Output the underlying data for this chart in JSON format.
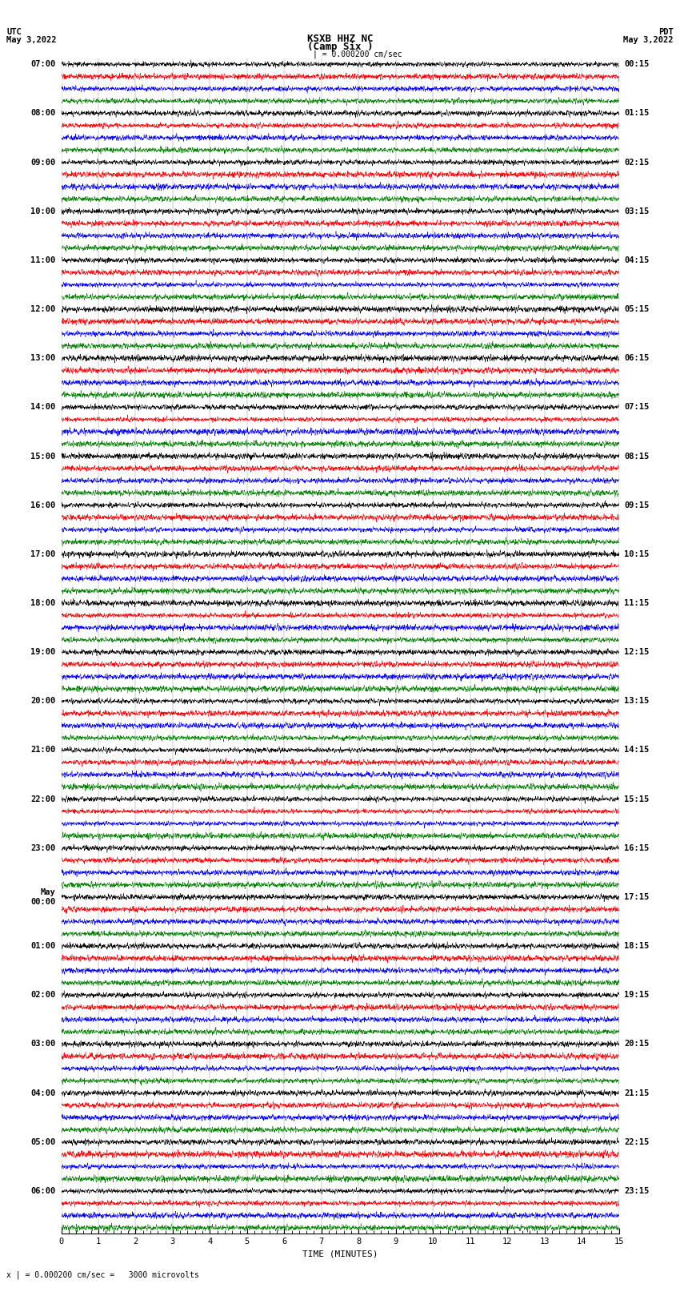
{
  "title_line1": "KSXB HHZ NC",
  "title_line2": "(Camp Six )",
  "scale_label": "| = 0.000200 cm/sec",
  "left_header_line1": "UTC",
  "left_header_line2": "May 3,2022",
  "right_header_line1": "PDT",
  "right_header_line2": "May 3,2022",
  "xlabel": "TIME (MINUTES)",
  "bottom_note": "x | = 0.000200 cm/sec =   3000 microvolts",
  "utc_labels": [
    "07:00",
    "08:00",
    "09:00",
    "10:00",
    "11:00",
    "12:00",
    "13:00",
    "14:00",
    "15:00",
    "16:00",
    "17:00",
    "18:00",
    "19:00",
    "20:00",
    "21:00",
    "22:00",
    "23:00",
    "May\n00:00",
    "01:00",
    "02:00",
    "03:00",
    "04:00",
    "05:00",
    "06:00"
  ],
  "pdt_labels": [
    "00:15",
    "01:15",
    "02:15",
    "03:15",
    "04:15",
    "05:15",
    "06:15",
    "07:15",
    "08:15",
    "09:15",
    "10:15",
    "11:15",
    "12:15",
    "13:15",
    "14:15",
    "15:15",
    "16:15",
    "17:15",
    "18:15",
    "19:15",
    "20:15",
    "21:15",
    "22:15",
    "23:15"
  ],
  "trace_colors": [
    "black",
    "red",
    "blue",
    "green"
  ],
  "n_hours": 24,
  "n_minutes": 15,
  "samples_per_minute": 200,
  "amplitude_scale": 0.38,
  "background_color": "white",
  "fig_width": 8.5,
  "fig_height": 16.13,
  "grid_color": "#888888",
  "grid_linewidth": 0.3,
  "trace_linewidth": 0.35,
  "font_size_labels": 7.5,
  "font_size_title": 9,
  "font_size_xlabel": 8,
  "font_size_note": 7
}
